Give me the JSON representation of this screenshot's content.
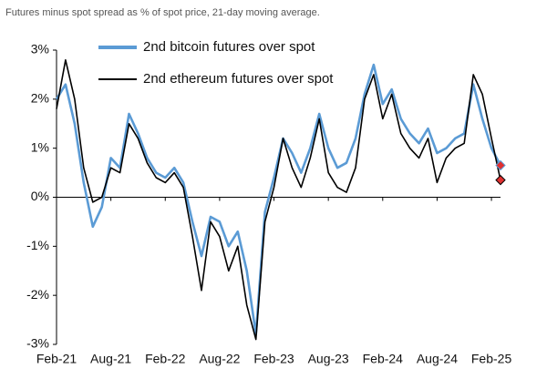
{
  "chart_data": {
    "type": "line",
    "title": "Futures minus spot spread as % of spot price, 21-day moving average.",
    "x": [
      "2021-02",
      "2021-03",
      "2021-04",
      "2021-05",
      "2021-06",
      "2021-07",
      "2021-08",
      "2021-09",
      "2021-10",
      "2021-11",
      "2021-12",
      "2022-01",
      "2022-02",
      "2022-03",
      "2022-04",
      "2022-05",
      "2022-06",
      "2022-07",
      "2022-08",
      "2022-09",
      "2022-10",
      "2022-11",
      "2022-12",
      "2023-01",
      "2023-02",
      "2023-03",
      "2023-04",
      "2023-05",
      "2023-06",
      "2023-07",
      "2023-08",
      "2023-09",
      "2023-10",
      "2023-11",
      "2023-12",
      "2024-01",
      "2024-02",
      "2024-03",
      "2024-04",
      "2024-05",
      "2024-06",
      "2024-07",
      "2024-08",
      "2024-09",
      "2024-10",
      "2024-11",
      "2024-12",
      "2025-01",
      "2025-02",
      "2025-03"
    ],
    "series": [
      {
        "name": "2nd bitcoin futures over spot",
        "color": "#5b9bd5",
        "values": [
          2.0,
          2.3,
          1.5,
          0.3,
          -0.6,
          -0.2,
          0.8,
          0.6,
          1.7,
          1.3,
          0.8,
          0.5,
          0.4,
          0.6,
          0.3,
          -0.5,
          -1.2,
          -0.4,
          -0.5,
          -1.0,
          -0.7,
          -1.5,
          -2.8,
          -0.3,
          0.4,
          1.2,
          0.9,
          0.5,
          1.0,
          1.7,
          1.0,
          0.6,
          0.7,
          1.2,
          2.1,
          2.7,
          1.9,
          2.2,
          1.6,
          1.3,
          1.1,
          1.4,
          0.9,
          1.0,
          1.2,
          1.3,
          2.3,
          1.6,
          1.0,
          0.65
        ]
      },
      {
        "name": "2nd ethereum futures over spot",
        "color": "#000000",
        "values": [
          1.8,
          2.8,
          2.0,
          0.6,
          -0.1,
          0.0,
          0.6,
          0.5,
          1.5,
          1.2,
          0.7,
          0.4,
          0.3,
          0.5,
          0.2,
          -0.8,
          -1.9,
          -0.5,
          -0.8,
          -1.5,
          -1.0,
          -2.2,
          -2.9,
          -0.5,
          0.2,
          1.2,
          0.6,
          0.2,
          0.8,
          1.6,
          0.5,
          0.2,
          0.1,
          0.6,
          2.0,
          2.5,
          1.6,
          2.1,
          1.3,
          1.0,
          0.8,
          1.2,
          0.3,
          0.8,
          1.0,
          1.1,
          2.5,
          2.1,
          1.2,
          0.35
        ]
      }
    ],
    "end_markers": {
      "color": "#e03030"
    },
    "xlim": [
      "2021-02",
      "2025-03"
    ],
    "xticks": [
      {
        "value": "2021-02",
        "label": "Feb-21"
      },
      {
        "value": "2021-08",
        "label": "Aug-21"
      },
      {
        "value": "2022-02",
        "label": "Feb-22"
      },
      {
        "value": "2022-08",
        "label": "Aug-22"
      },
      {
        "value": "2023-02",
        "label": "Feb-23"
      },
      {
        "value": "2023-08",
        "label": "Aug-23"
      },
      {
        "value": "2024-02",
        "label": "Feb-24"
      },
      {
        "value": "2024-08",
        "label": "Aug-24"
      },
      {
        "value": "2025-02",
        "label": "Feb-25"
      }
    ],
    "ylim": [
      -3,
      3
    ],
    "yticks": [
      {
        "value": -3,
        "label": "-3%"
      },
      {
        "value": -2,
        "label": "-2%"
      },
      {
        "value": -1,
        "label": "-1%"
      },
      {
        "value": 0,
        "label": "0%"
      },
      {
        "value": 1,
        "label": "1%"
      },
      {
        "value": 2,
        "label": "2%"
      },
      {
        "value": 3,
        "label": "3%"
      }
    ]
  }
}
